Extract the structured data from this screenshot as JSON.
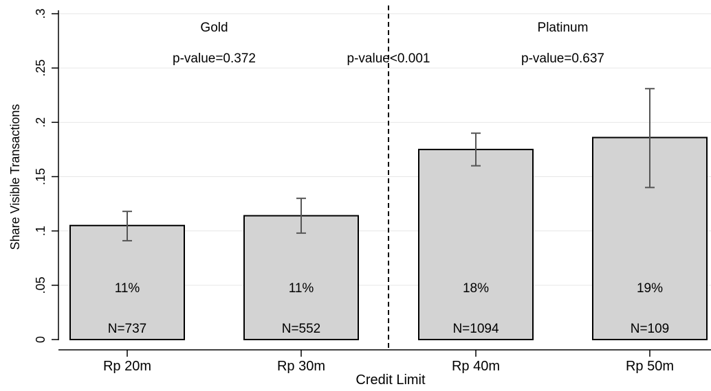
{
  "chart_data": {
    "type": "bar",
    "xlabel": "Credit Limit",
    "ylabel": "Share Visible Transactions",
    "ylim": [
      0,
      0.3
    ],
    "yticks": [
      {
        "value": 0,
        "label": "0"
      },
      {
        "value": 0.05,
        "label": ".05"
      },
      {
        "value": 0.1,
        "label": ".1"
      },
      {
        "value": 0.15,
        "label": ".15"
      },
      {
        "value": 0.2,
        "label": ".2"
      },
      {
        "value": 0.25,
        "label": ".25"
      },
      {
        "value": 0.3,
        "label": ".3"
      }
    ],
    "grid": true,
    "categories": [
      "Rp 20m",
      "Rp 30m",
      "Rp 40m",
      "Rp 50m"
    ],
    "values": [
      0.105,
      0.114,
      0.175,
      0.186
    ],
    "ci_low": [
      0.091,
      0.098,
      0.16,
      0.14
    ],
    "ci_high": [
      0.118,
      0.13,
      0.19,
      0.231
    ],
    "pct_labels": [
      "11%",
      "11%",
      "18%",
      "19%"
    ],
    "n_labels": [
      "N=737",
      "N=552",
      "N=1094",
      "N=109"
    ],
    "groups": [
      {
        "label": "Gold",
        "categories": [
          "Rp 20m",
          "Rp 30m"
        ]
      },
      {
        "label": "Platinum",
        "categories": [
          "Rp 40m",
          "Rp 50m"
        ]
      }
    ],
    "divider_between": [
      "Rp 30m",
      "Rp 40m"
    ],
    "pvalues": [
      {
        "label": "p-value=0.372",
        "between": [
          "Rp 20m",
          "Rp 30m"
        ]
      },
      {
        "label": "p-value<0.001",
        "between": [
          "Rp 30m",
          "Rp 40m"
        ]
      },
      {
        "label": "p-value=0.637",
        "between": [
          "Rp 40m",
          "Rp 50m"
        ]
      }
    ],
    "colors": {
      "bar_fill": "#d3d3d3",
      "bar_stroke": "#000000",
      "error_bar": "#555555",
      "grid": "#e6e6e6"
    }
  }
}
